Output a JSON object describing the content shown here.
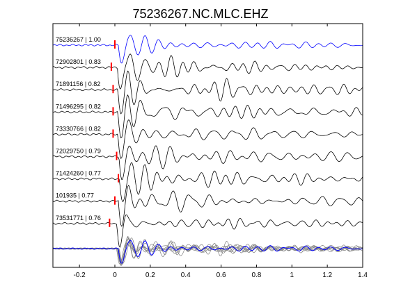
{
  "chart_data": {
    "type": "line",
    "title": "75236267.NC.MLC.EHZ",
    "xlabel": "",
    "ylabel": "",
    "xlim": [
      -0.35,
      1.4
    ],
    "xticks": [
      -0.2,
      0,
      0.2,
      0.4,
      0.6,
      0.8,
      1,
      1.2,
      1.4
    ],
    "xtick_labels": [
      "-0.2",
      "0",
      "0.2",
      "0.4",
      "0.6",
      "0.8",
      "1",
      "1.2",
      "1.4"
    ],
    "grid": false,
    "legend": "none",
    "colors": {
      "reference": "#0000ff",
      "trace": "#000000",
      "pick": "#ff0000",
      "overlay": "#808080"
    },
    "series": [
      {
        "event_id": "75236267",
        "label": "75236267 | 1.00",
        "correlation": 1.0,
        "pick_time": 0.0,
        "color": "#0000ff"
      },
      {
        "event_id": "72902801",
        "label": "72902801 | 0.83",
        "correlation": 0.83,
        "pick_time": -0.02,
        "color": "#000000"
      },
      {
        "event_id": "71891156",
        "label": "71891156 | 0.82",
        "correlation": 0.82,
        "pick_time": -0.01,
        "color": "#000000"
      },
      {
        "event_id": "71496295",
        "label": "71496295 | 0.82",
        "correlation": 0.82,
        "pick_time": -0.01,
        "color": "#000000"
      },
      {
        "event_id": "73330766",
        "label": "73330766 | 0.82",
        "correlation": 0.82,
        "pick_time": -0.01,
        "color": "#000000"
      },
      {
        "event_id": "72029750",
        "label": "72029750 | 0.79",
        "correlation": 0.79,
        "pick_time": 0.01,
        "color": "#000000"
      },
      {
        "event_id": "71424260",
        "label": "71424260 | 0.77",
        "correlation": 0.77,
        "pick_time": 0.02,
        "color": "#000000"
      },
      {
        "event_id": "101935",
        "label": "101935 | 0.77",
        "correlation": 0.77,
        "pick_time": 0.0,
        "color": "#000000"
      },
      {
        "event_id": "73531771",
        "label": "73531771 | 0.76",
        "correlation": 0.76,
        "pick_time": -0.03,
        "color": "#000000"
      }
    ],
    "stack": {
      "name": "overlay",
      "reference_color": "#0000ff",
      "member_color": "#808080"
    }
  }
}
